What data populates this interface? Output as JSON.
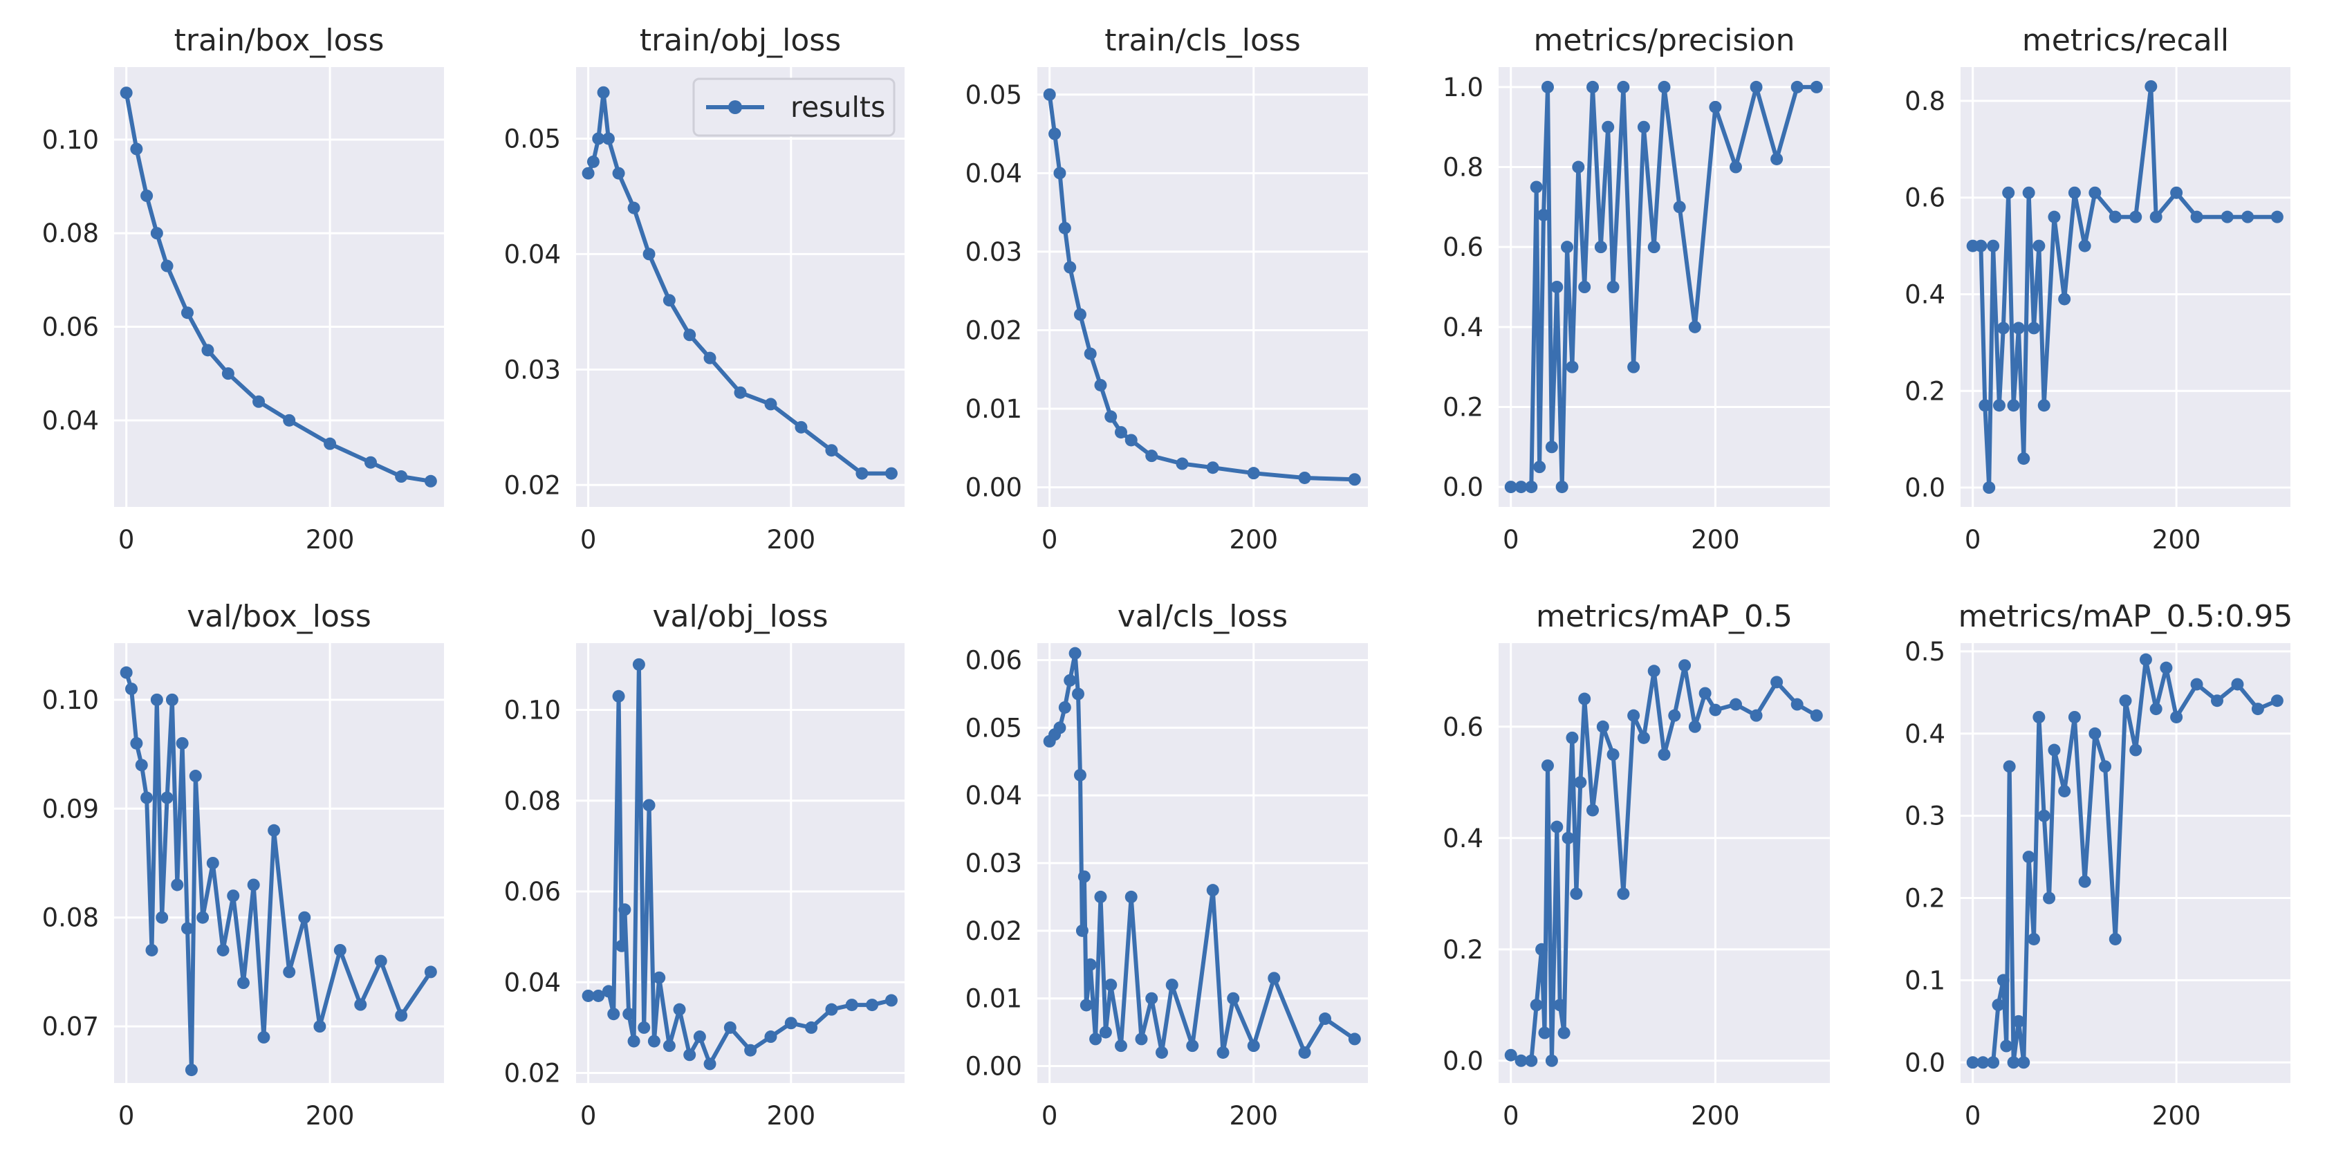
{
  "colors": {
    "series": "#3a6fb0",
    "background": "#eaeaf2",
    "grid": "#ffffff",
    "text": "#262626"
  },
  "legend": {
    "label": "results",
    "panel": "train/obj_loss",
    "location": "upper right"
  },
  "chart_data": [
    {
      "type": "line",
      "title": "train/box_loss",
      "xticks": [
        "0",
        "200"
      ],
      "xlim": [
        -12,
        312
      ],
      "yticks": [
        "0.04",
        "0.06",
        "0.08",
        "0.10"
      ],
      "ylim": [
        0.0215,
        0.1155
      ],
      "series": [
        {
          "name": "results",
          "x": [
            0,
            10,
            20,
            30,
            40,
            60,
            80,
            100,
            130,
            160,
            200,
            240,
            270,
            299
          ],
          "y": [
            0.11,
            0.098,
            0.088,
            0.08,
            0.073,
            0.063,
            0.055,
            0.05,
            0.044,
            0.04,
            0.035,
            0.031,
            0.028,
            0.027
          ]
        }
      ]
    },
    {
      "type": "line",
      "title": "train/obj_loss",
      "xticks": [
        "0",
        "200"
      ],
      "xlim": [
        -12,
        312
      ],
      "yticks": [
        "0.02",
        "0.03",
        "0.04",
        "0.05"
      ],
      "ylim": [
        0.0181,
        0.0562
      ],
      "series": [
        {
          "name": "results",
          "x": [
            0,
            5,
            10,
            15,
            20,
            30,
            45,
            60,
            80,
            100,
            120,
            150,
            180,
            210,
            240,
            270,
            299
          ],
          "y": [
            0.047,
            0.048,
            0.05,
            0.054,
            0.05,
            0.047,
            0.044,
            0.04,
            0.036,
            0.033,
            0.031,
            0.028,
            0.027,
            0.025,
            0.023,
            0.021,
            0.021
          ]
        }
      ]
    },
    {
      "type": "line",
      "title": "train/cls_loss",
      "xticks": [
        "0",
        "200"
      ],
      "xlim": [
        -12,
        312
      ],
      "yticks": [
        "0.00",
        "0.01",
        "0.02",
        "0.03",
        "0.04",
        "0.05"
      ],
      "ylim": [
        -0.0025,
        0.0535
      ],
      "series": [
        {
          "name": "results",
          "x": [
            0,
            5,
            10,
            15,
            20,
            30,
            40,
            50,
            60,
            70,
            80,
            100,
            130,
            160,
            200,
            250,
            299
          ],
          "y": [
            0.05,
            0.045,
            0.04,
            0.033,
            0.028,
            0.022,
            0.017,
            0.013,
            0.009,
            0.007,
            0.006,
            0.004,
            0.003,
            0.0025,
            0.0018,
            0.0012,
            0.001
          ]
        }
      ]
    },
    {
      "type": "line",
      "title": "metrics/precision",
      "xticks": [
        "0",
        "200"
      ],
      "xlim": [
        -12,
        312
      ],
      "yticks": [
        "0.0",
        "0.2",
        "0.4",
        "0.6",
        "0.8",
        "1.0"
      ],
      "ylim": [
        -0.05,
        1.05
      ],
      "series": [
        {
          "name": "results",
          "x": [
            0,
            10,
            20,
            25,
            28,
            32,
            36,
            40,
            45,
            50,
            55,
            60,
            66,
            72,
            80,
            88,
            95,
            100,
            110,
            120,
            130,
            140,
            150,
            165,
            180,
            200,
            220,
            240,
            260,
            280,
            299
          ],
          "y": [
            0.0,
            0.0,
            0.0,
            0.75,
            0.05,
            0.68,
            1.0,
            0.1,
            0.5,
            0.0,
            0.6,
            0.3,
            0.8,
            0.5,
            1.0,
            0.6,
            0.9,
            0.5,
            1.0,
            0.3,
            0.9,
            0.6,
            1.0,
            0.7,
            0.4,
            0.95,
            0.8,
            1.0,
            0.82,
            1.0,
            1.0
          ]
        }
      ]
    },
    {
      "type": "line",
      "title": "metrics/recall",
      "xticks": [
        "0",
        "200"
      ],
      "xlim": [
        -12,
        312
      ],
      "yticks": [
        "0.0",
        "0.2",
        "0.4",
        "0.6",
        "0.8"
      ],
      "ylim": [
        -0.04,
        0.87
      ],
      "series": [
        {
          "name": "results",
          "x": [
            0,
            8,
            12,
            16,
            20,
            26,
            30,
            35,
            40,
            45,
            50,
            55,
            60,
            65,
            70,
            80,
            90,
            100,
            110,
            120,
            140,
            160,
            175,
            180,
            200,
            220,
            250,
            270,
            299
          ],
          "y": [
            0.5,
            0.5,
            0.17,
            0.0,
            0.5,
            0.17,
            0.33,
            0.61,
            0.17,
            0.33,
            0.06,
            0.61,
            0.33,
            0.5,
            0.17,
            0.56,
            0.39,
            0.61,
            0.5,
            0.61,
            0.56,
            0.56,
            0.83,
            0.56,
            0.61,
            0.56,
            0.56,
            0.56,
            0.56
          ]
        }
      ]
    },
    {
      "type": "line",
      "title": "val/box_loss",
      "xticks": [
        "0",
        "200"
      ],
      "xlim": [
        -12,
        312
      ],
      "yticks": [
        "0.07",
        "0.08",
        "0.09",
        "0.10"
      ],
      "ylim": [
        0.0648,
        0.1052
      ],
      "series": [
        {
          "name": "results",
          "x": [
            0,
            5,
            10,
            15,
            20,
            25,
            30,
            35,
            40,
            45,
            50,
            55,
            60,
            64,
            68,
            75,
            85,
            95,
            105,
            115,
            125,
            135,
            145,
            160,
            175,
            190,
            210,
            230,
            250,
            270,
            299
          ],
          "y": [
            0.1025,
            0.101,
            0.096,
            0.094,
            0.091,
            0.077,
            0.1,
            0.08,
            0.091,
            0.1,
            0.083,
            0.096,
            0.079,
            0.066,
            0.093,
            0.08,
            0.085,
            0.077,
            0.082,
            0.074,
            0.083,
            0.069,
            0.088,
            0.075,
            0.08,
            0.07,
            0.077,
            0.072,
            0.076,
            0.071,
            0.075
          ]
        }
      ]
    },
    {
      "type": "line",
      "title": "val/obj_loss",
      "xticks": [
        "0",
        "200"
      ],
      "xlim": [
        -12,
        312
      ],
      "yticks": [
        "0.02",
        "0.04",
        "0.06",
        "0.08",
        "0.10"
      ],
      "ylim": [
        0.0178,
        0.1147
      ],
      "series": [
        {
          "name": "results",
          "x": [
            0,
            10,
            20,
            25,
            30,
            33,
            36,
            40,
            45,
            50,
            55,
            60,
            65,
            70,
            80,
            90,
            100,
            110,
            120,
            140,
            160,
            180,
            200,
            220,
            240,
            260,
            280,
            299
          ],
          "y": [
            0.037,
            0.037,
            0.038,
            0.033,
            0.103,
            0.048,
            0.056,
            0.033,
            0.027,
            0.11,
            0.03,
            0.079,
            0.027,
            0.041,
            0.026,
            0.034,
            0.024,
            0.028,
            0.022,
            0.03,
            0.025,
            0.028,
            0.031,
            0.03,
            0.034,
            0.035,
            0.035,
            0.036
          ]
        }
      ]
    },
    {
      "type": "line",
      "title": "val/cls_loss",
      "xticks": [
        "0",
        "200"
      ],
      "xlim": [
        -12,
        312
      ],
      "yticks": [
        "0.00",
        "0.01",
        "0.02",
        "0.03",
        "0.04",
        "0.05",
        "0.06"
      ],
      "ylim": [
        -0.0025,
        0.0625
      ],
      "series": [
        {
          "name": "results",
          "x": [
            0,
            5,
            10,
            15,
            20,
            25,
            28,
            30,
            32,
            34,
            36,
            40,
            45,
            50,
            55,
            60,
            70,
            80,
            90,
            100,
            110,
            120,
            140,
            160,
            170,
            180,
            200,
            220,
            250,
            270,
            299
          ],
          "y": [
            0.048,
            0.049,
            0.05,
            0.053,
            0.057,
            0.061,
            0.055,
            0.043,
            0.02,
            0.028,
            0.009,
            0.015,
            0.004,
            0.025,
            0.005,
            0.012,
            0.003,
            0.025,
            0.004,
            0.01,
            0.002,
            0.012,
            0.003,
            0.026,
            0.002,
            0.01,
            0.003,
            0.013,
            0.002,
            0.007,
            0.004
          ]
        }
      ]
    },
    {
      "type": "line",
      "title": "metrics/mAP_0.5",
      "xticks": [
        "0",
        "200"
      ],
      "xlim": [
        -12,
        312
      ],
      "yticks": [
        "0.0",
        "0.2",
        "0.4",
        "0.6"
      ],
      "ylim": [
        -0.04,
        0.75
      ],
      "series": [
        {
          "name": "results",
          "x": [
            0,
            10,
            20,
            25,
            30,
            33,
            36,
            40,
            45,
            48,
            52,
            56,
            60,
            64,
            68,
            72,
            80,
            90,
            100,
            110,
            120,
            130,
            140,
            150,
            160,
            170,
            180,
            190,
            200,
            220,
            240,
            260,
            280,
            299
          ],
          "y": [
            0.01,
            0.0,
            0.0,
            0.1,
            0.2,
            0.05,
            0.53,
            0.0,
            0.42,
            0.1,
            0.05,
            0.4,
            0.58,
            0.3,
            0.5,
            0.65,
            0.45,
            0.6,
            0.55,
            0.3,
            0.62,
            0.58,
            0.7,
            0.55,
            0.62,
            0.71,
            0.6,
            0.66,
            0.63,
            0.64,
            0.62,
            0.68,
            0.64,
            0.62
          ]
        }
      ]
    },
    {
      "type": "line",
      "title": "metrics/mAP_0.5:0.95",
      "xticks": [
        "0",
        "200"
      ],
      "xlim": [
        -12,
        312
      ],
      "yticks": [
        "0.0",
        "0.1",
        "0.2",
        "0.3",
        "0.4",
        "0.5"
      ],
      "ylim": [
        -0.025,
        0.51
      ],
      "series": [
        {
          "name": "results",
          "x": [
            0,
            10,
            20,
            25,
            30,
            33,
            36,
            40,
            45,
            50,
            55,
            60,
            65,
            70,
            75,
            80,
            90,
            100,
            110,
            120,
            130,
            140,
            150,
            160,
            170,
            180,
            190,
            200,
            220,
            240,
            260,
            280,
            299
          ],
          "y": [
            0.0,
            0.0,
            0.0,
            0.07,
            0.1,
            0.02,
            0.36,
            0.0,
            0.05,
            0.0,
            0.25,
            0.15,
            0.42,
            0.3,
            0.2,
            0.38,
            0.33,
            0.42,
            0.22,
            0.4,
            0.36,
            0.15,
            0.44,
            0.38,
            0.49,
            0.43,
            0.48,
            0.42,
            0.46,
            0.44,
            0.46,
            0.43,
            0.44
          ]
        }
      ]
    }
  ]
}
